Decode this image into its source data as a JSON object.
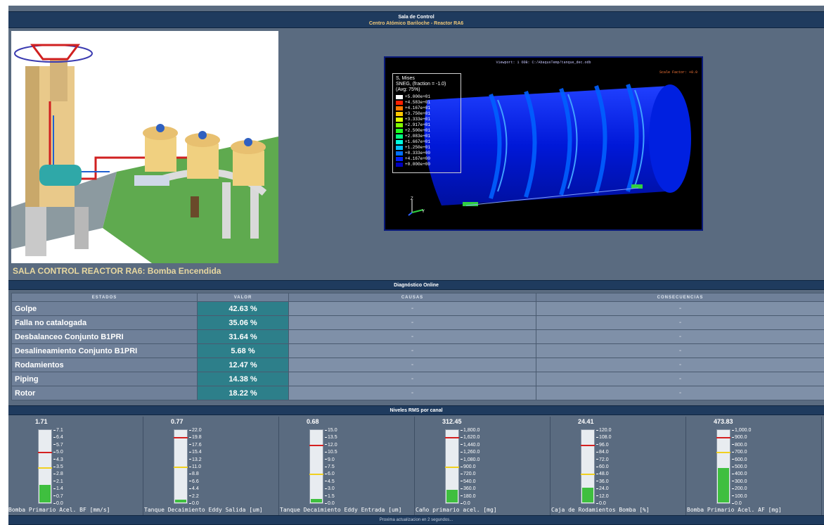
{
  "header": {
    "title": "Sala de Control",
    "subtitle": "Centro Atómico Bariloche - Reactor RA6"
  },
  "sala_title": "SALA CONTROL REACTOR RA6: Bomba Encendida",
  "viewport": {
    "header": "Viewport: 1    ODB: C:/AbaqusTemp/tanque_dec.odb",
    "scale": "Scale Factor: +0.0",
    "legend_title": [
      "S, Mises",
      "SNEG, (fraction = -1.0)",
      "(Avg: 75%)"
    ],
    "legend_values": [
      "+5.000e+01",
      "+4.583e+01",
      "+4.167e+01",
      "+3.750e+01",
      "+3.333e+01",
      "+2.917e+01",
      "+2.500e+01",
      "+2.083e+01",
      "+1.667e+01",
      "+1.250e+01",
      "+8.333e+00",
      "+4.167e+00",
      "+0.000e+00"
    ],
    "legend_colors": [
      "#ffffff",
      "#ff2000",
      "#ff7a00",
      "#ffc800",
      "#e0ff00",
      "#80ff00",
      "#20ff20",
      "#00ff80",
      "#00ffe0",
      "#00c0ff",
      "#0070ff",
      "#0020ff",
      "#0000c0"
    ],
    "axis_z": "Z",
    "axis_y": "Y"
  },
  "diag": {
    "section_title": "Diagnóstico Online",
    "headers": [
      "ESTADOS",
      "VALOR",
      "CAUSAS",
      "CONSECUENCIAS"
    ],
    "rows": [
      {
        "estado": "Golpe",
        "valor": "42.63 %",
        "causa": "-",
        "consecuencia": "-"
      },
      {
        "estado": "Falla no catalogada",
        "valor": "35.06 %",
        "causa": "-",
        "consecuencia": "-"
      },
      {
        "estado": "Desbalanceo Conjunto B1PRI",
        "valor": "31.64 %",
        "causa": "-",
        "consecuencia": "-"
      },
      {
        "estado": "Desalineamiento Conjunto B1PRI",
        "valor": "5.68 %",
        "causa": "-",
        "consecuencia": "-"
      },
      {
        "estado": "Rodamientos",
        "valor": "12.47 %",
        "causa": "-",
        "consecuencia": "-"
      },
      {
        "estado": "Piping",
        "valor": "14.38 %",
        "causa": "-",
        "consecuencia": "-"
      },
      {
        "estado": "Rotor",
        "valor": "18.22 %",
        "causa": "-",
        "consecuencia": "-"
      }
    ]
  },
  "rms": {
    "section_title": "Niveles RMS por canal",
    "gauges": [
      {
        "reading": "1.71",
        "value": 1.71,
        "max": 7.1,
        "red": 5.0,
        "yellow": 3.5,
        "ticks": [
          "7.1",
          "6.4",
          "5.7",
          "5.0",
          "4.3",
          "3.5",
          "2.8",
          "2.1",
          "1.4",
          "0.7",
          "0.0"
        ],
        "label": "Bomba Primario Acel. BF [mm/s]"
      },
      {
        "reading": "0.77",
        "value": 0.77,
        "max": 22.0,
        "red": 19.8,
        "yellow": 11.0,
        "ticks": [
          "22.0",
          "19.8",
          "17.6",
          "15.4",
          "13.2",
          "11.0",
          "8.8",
          "6.6",
          "4.4",
          "2.2",
          "0.0"
        ],
        "label": "Tanque Decaimiento Eddy Salida [um]"
      },
      {
        "reading": "0.68",
        "value": 0.68,
        "max": 15.0,
        "red": 12.0,
        "yellow": 6.0,
        "ticks": [
          "15.0",
          "13.5",
          "12.0",
          "10.5",
          "9.0",
          "7.5",
          "6.0",
          "4.5",
          "3.0",
          "1.5",
          "0.0"
        ],
        "label": "Tanque Decaimiento Eddy Entrada [um]"
      },
      {
        "reading": "312.45",
        "value": 312.45,
        "max": 1800.0,
        "red": 1620.0,
        "yellow": 900.0,
        "ticks": [
          "1,800.0",
          "1,620.0",
          "1,440.0",
          "1,260.0",
          "1,080.0",
          "900.0",
          "720.0",
          "540.0",
          "360.0",
          "180.0",
          "0.0"
        ],
        "label": "Caño primario acel. [mg]"
      },
      {
        "reading": "24.41",
        "value": 24.41,
        "max": 120.0,
        "red": 96.0,
        "yellow": 48.0,
        "ticks": [
          "120.0",
          "108.0",
          "96.0",
          "84.0",
          "72.0",
          "60.0",
          "48.0",
          "36.0",
          "24.0",
          "12.0",
          "0.0"
        ],
        "label": "Caja de Rodamientos Bomba [%]"
      },
      {
        "reading": "473.83",
        "value": 473.83,
        "max": 1000.0,
        "red": 900.0,
        "yellow": 700.0,
        "ticks": [
          "1,000.0",
          "900.0",
          "800.0",
          "700.0",
          "600.0",
          "500.0",
          "400.0",
          "300.0",
          "200.0",
          "100.0",
          "0.0"
        ],
        "label": "Bomba Primario Acel. AF [mg]"
      }
    ]
  },
  "footer": "Proxima actualizacion en 2 segundos..."
}
